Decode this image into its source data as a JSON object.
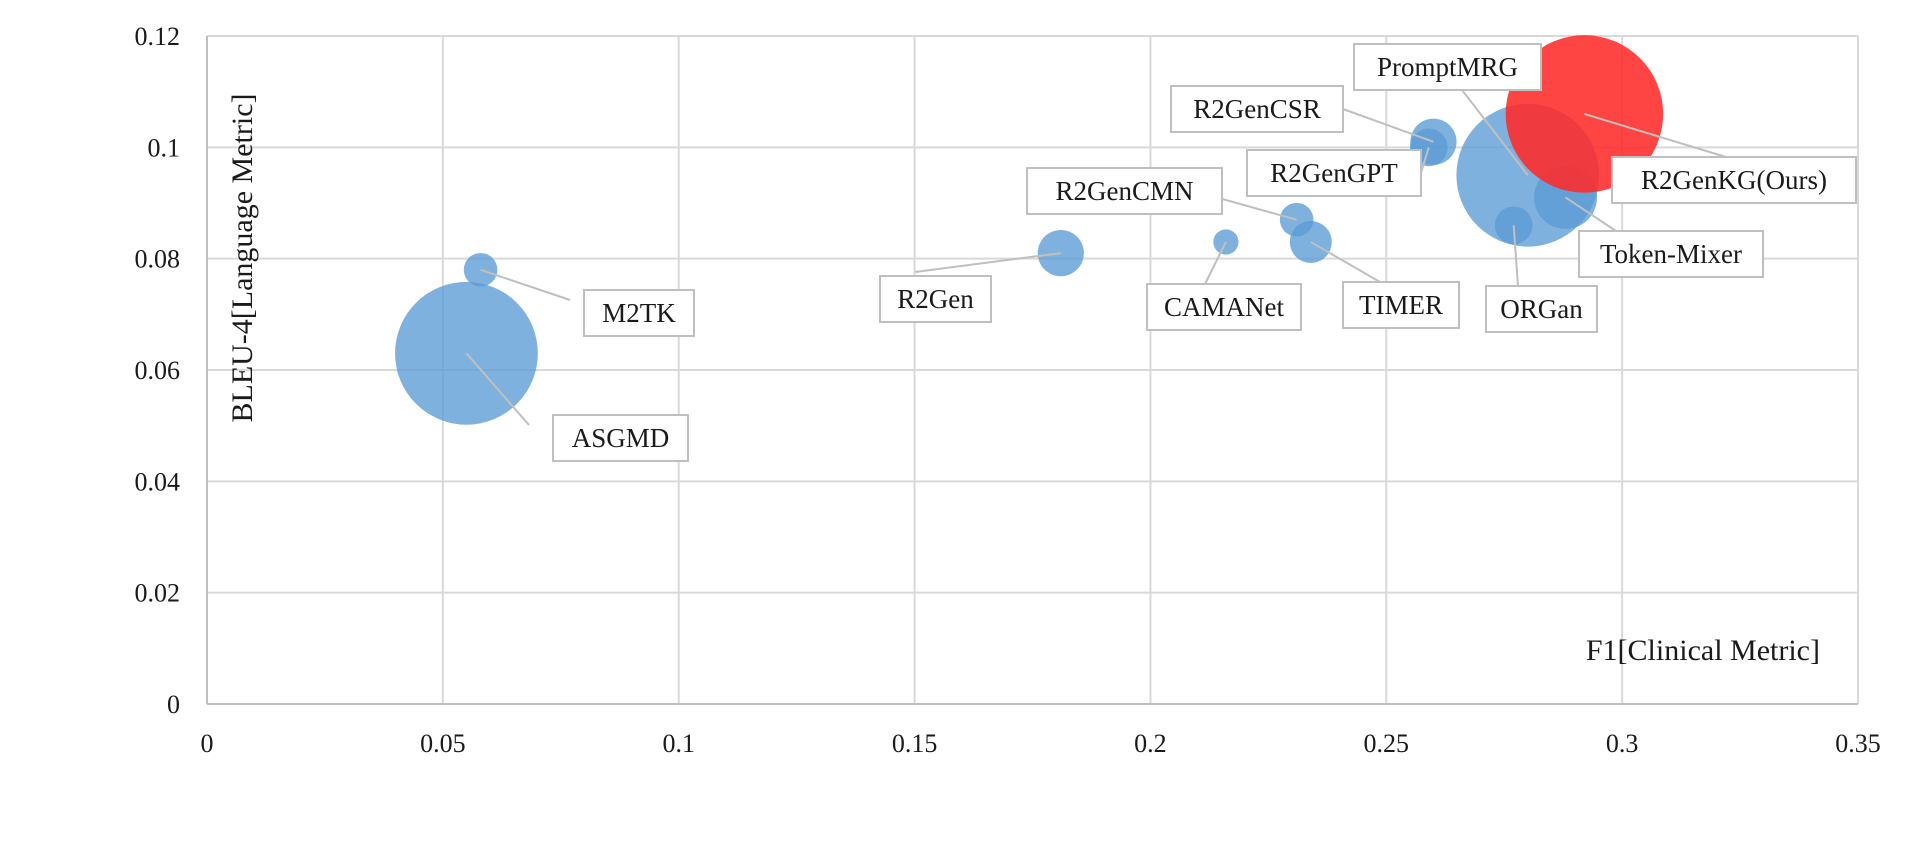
{
  "chart_data": {
    "type": "scatter",
    "xlabel": "F1[Clinical Metric]",
    "ylabel": "BLEU-4[Language Metric]",
    "xlim": [
      0,
      0.35
    ],
    "ylim": [
      0,
      0.12
    ],
    "xticks": [
      0,
      0.05,
      0.1,
      0.15,
      0.2,
      0.25,
      0.3,
      0.35
    ],
    "xtick_labels": [
      "0",
      "0.05",
      "0.1",
      "0.15",
      "0.2",
      "0.25",
      "0.3",
      "0.35"
    ],
    "yticks": [
      0,
      0.02,
      0.04,
      0.06,
      0.08,
      0.1,
      0.12
    ],
    "ytick_labels": [
      "0",
      "0.02",
      "0.04",
      "0.06",
      "0.08",
      "0.1",
      "0.12"
    ],
    "grid": true,
    "legend": "none",
    "colors": {
      "default": "#5b9bd5",
      "highlight": "#ff2a2a"
    },
    "points": [
      {
        "label": "M2TK",
        "x": 0.058,
        "y": 0.078,
        "size": 0.16,
        "highlight": false
      },
      {
        "label": "ASGMD",
        "x": 0.055,
        "y": 0.063,
        "size": 0.68,
        "highlight": false
      },
      {
        "label": "R2Gen",
        "x": 0.181,
        "y": 0.081,
        "size": 0.22,
        "highlight": false
      },
      {
        "label": "CAMANet",
        "x": 0.216,
        "y": 0.083,
        "size": 0.12,
        "highlight": false
      },
      {
        "label": "R2GenCMN",
        "x": 0.231,
        "y": 0.087,
        "size": 0.16,
        "highlight": false
      },
      {
        "label": "TIMER",
        "x": 0.234,
        "y": 0.083,
        "size": 0.2,
        "highlight": false
      },
      {
        "label": "R2GenGPT",
        "x": 0.259,
        "y": 0.1,
        "size": 0.18,
        "highlight": false
      },
      {
        "label": "R2GenCSR",
        "x": 0.26,
        "y": 0.101,
        "size": 0.22,
        "highlight": false
      },
      {
        "label": "ORGan",
        "x": 0.277,
        "y": 0.086,
        "size": 0.18,
        "highlight": false
      },
      {
        "label": "PromptMRG",
        "x": 0.28,
        "y": 0.095,
        "size": 0.68,
        "highlight": false
      },
      {
        "label": "Token-Mixer",
        "x": 0.288,
        "y": 0.091,
        "size": 0.3,
        "highlight": false
      },
      {
        "label": "R2GenKG(Ours)",
        "x": 0.292,
        "y": 0.106,
        "size": 0.75,
        "highlight": true
      }
    ]
  }
}
